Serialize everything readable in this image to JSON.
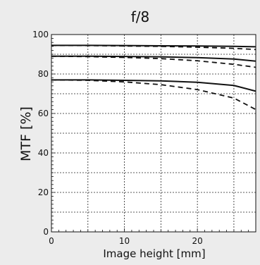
{
  "chart_data": {
    "type": "line",
    "title": "f/8",
    "xlabel": "Image height [mm]",
    "ylabel": "MTF [%]",
    "xlim": [
      0,
      28
    ],
    "ylim": [
      0,
      100
    ],
    "xticks": [
      0,
      10,
      20
    ],
    "yticks": [
      0,
      20,
      40,
      60,
      80,
      100
    ],
    "grid": true,
    "series": [
      {
        "style": "solid",
        "values": [
          [
            0,
            94.5
          ],
          [
            5,
            94.5
          ],
          [
            10,
            94.4
          ],
          [
            15,
            94.3
          ],
          [
            20,
            94.2
          ],
          [
            25,
            94.0
          ],
          [
            28,
            93.8
          ]
        ]
      },
      {
        "style": "dashed",
        "values": [
          [
            0,
            94.5
          ],
          [
            5,
            94.4
          ],
          [
            10,
            94.2
          ],
          [
            15,
            94.0
          ],
          [
            20,
            93.6
          ],
          [
            25,
            93.0
          ],
          [
            28,
            92.4
          ]
        ]
      },
      {
        "style": "solid",
        "values": [
          [
            0,
            89.0
          ],
          [
            5,
            89.0
          ],
          [
            10,
            88.9
          ],
          [
            15,
            88.7
          ],
          [
            20,
            88.3
          ],
          [
            25,
            87.6
          ],
          [
            28,
            86.5
          ]
        ]
      },
      {
        "style": "dashed",
        "values": [
          [
            0,
            89.0
          ],
          [
            5,
            88.8
          ],
          [
            10,
            88.4
          ],
          [
            15,
            87.8
          ],
          [
            20,
            86.7
          ],
          [
            25,
            84.9
          ],
          [
            28,
            83.4
          ]
        ]
      },
      {
        "style": "solid",
        "values": [
          [
            0,
            77.0
          ],
          [
            5,
            77.0
          ],
          [
            10,
            76.8
          ],
          [
            15,
            76.5
          ],
          [
            20,
            75.8
          ],
          [
            25,
            74.2
          ],
          [
            28,
            71.3
          ]
        ]
      },
      {
        "style": "dashed",
        "values": [
          [
            0,
            77.0
          ],
          [
            5,
            76.8
          ],
          [
            10,
            76.0
          ],
          [
            15,
            74.6
          ],
          [
            20,
            72.1
          ],
          [
            25,
            67.8
          ],
          [
            28,
            62.0
          ]
        ]
      }
    ]
  }
}
